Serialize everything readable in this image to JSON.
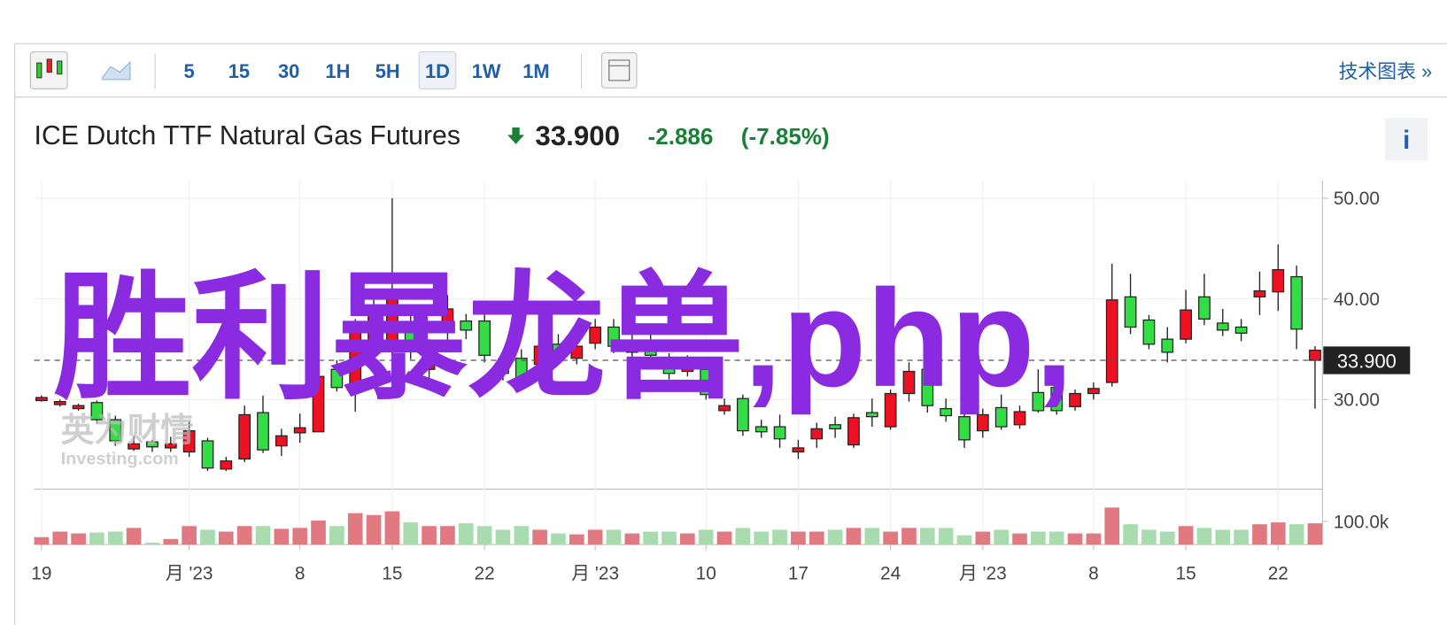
{
  "toolbar": {
    "intervals": [
      "5",
      "15",
      "30",
      "1H",
      "5H",
      "1D",
      "1W",
      "1M"
    ],
    "link": "技术图表 »"
  },
  "header": {
    "title": "ICE Dutch TTF Natural Gas Futures",
    "price": "33.900",
    "change": "-2.886",
    "change_pct": "(-7.85%)",
    "info": "i"
  },
  "watermark": {
    "text": "胜利暴龙兽,php,"
  },
  "logo": {
    "cn": "英为财情",
    "en": "Investing.com"
  },
  "chart_data": {
    "type": "candlestick",
    "categories": [
      "19",
      null,
      null,
      null,
      null,
      null,
      null,
      null,
      "月 '23",
      null,
      null,
      null,
      null,
      null,
      "8",
      null,
      null,
      null,
      null,
      "15",
      null,
      null,
      null,
      null,
      "22",
      null,
      null,
      null,
      null,
      null,
      "月 '23",
      null,
      null,
      null,
      null,
      null,
      "10",
      null,
      null,
      null,
      null,
      "17",
      null,
      null,
      null,
      null,
      "24",
      null,
      null,
      null,
      null,
      "月 '23",
      null,
      null,
      null,
      null,
      null,
      "8",
      null,
      null,
      null,
      null,
      "15",
      null,
      null,
      null,
      null,
      "22",
      null,
      null
    ],
    "open": [
      30.2,
      29.8,
      29.4,
      28.0,
      25.9,
      25.6,
      25.3,
      25.6,
      26.9,
      23.2,
      23.9,
      28.5,
      25.0,
      26.4,
      27.2,
      32.3,
      31.2,
      37.2,
      38.5,
      40.4,
      35.3,
      35.3,
      39.0,
      36.9,
      34.4,
      32.6,
      32.1,
      35.3,
      34.4,
      35.3,
      37.2,
      35.3,
      35.8,
      34.4,
      32.6,
      33.7,
      30.5,
      29.4,
      26.9,
      26.8,
      26.1,
      25.2,
      27.1,
      27.1,
      28.2,
      28.3,
      30.6,
      32.8,
      29.4,
      28.4,
      26.0,
      28.5,
      27.3,
      28.8,
      28.9,
      28.9,
      30.6,
      31.1,
      39.9,
      37.2,
      35.5,
      34.7,
      38.9,
      38.0,
      36.9,
      36.6,
      40.8,
      42.9,
      37.0,
      34.9
    ],
    "high": [
      30.4,
      30.0,
      29.6,
      29.9,
      28.4,
      26.4,
      26.0,
      26.3,
      27.8,
      26.2,
      24.3,
      29.4,
      30.4,
      27.1,
      28.6,
      33.7,
      33.9,
      38.0,
      40.0,
      50.0,
      38.5,
      36.0,
      40.4,
      38.5,
      38.5,
      34.6,
      35.0,
      36.0,
      36.5,
      36.0,
      38.0,
      38.0,
      36.5,
      36.5,
      34.6,
      34.4,
      33.5,
      30.1,
      30.5,
      28.0,
      28.5,
      26.0,
      27.7,
      28.3,
      28.6,
      30.1,
      31.0,
      33.7,
      33.5,
      30.1,
      28.7,
      29.1,
      30.5,
      29.4,
      33.0,
      32.0,
      31.0,
      31.7,
      43.5,
      42.5,
      38.4,
      37.2,
      40.9,
      42.5,
      39.0,
      38.0,
      42.7,
      45.4,
      43.3,
      35.3
    ],
    "low": [
      29.8,
      29.3,
      28.9,
      27.6,
      25.4,
      24.9,
      24.8,
      24.8,
      24.3,
      22.9,
      22.9,
      23.8,
      24.7,
      24.4,
      25.7,
      26.8,
      30.8,
      28.8,
      33.7,
      34.0,
      34.0,
      31.5,
      35.3,
      36.0,
      33.7,
      31.9,
      31.5,
      32.6,
      33.5,
      33.5,
      35.0,
      34.6,
      34.0,
      33.7,
      32.0,
      32.3,
      30.0,
      28.5,
      26.4,
      26.2,
      25.2,
      24.1,
      25.2,
      26.2,
      25.2,
      27.3,
      27.0,
      29.8,
      28.7,
      27.8,
      25.2,
      26.2,
      27.0,
      27.1,
      28.7,
      28.5,
      28.9,
      30.0,
      31.3,
      36.5,
      35.0,
      33.7,
      35.6,
      37.4,
      36.3,
      35.8,
      38.4,
      38.8,
      35.0,
      29.1
    ],
    "close": [
      29.9,
      29.5,
      29.1,
      29.7,
      28.0,
      25.1,
      25.8,
      25.2,
      24.8,
      25.9,
      23.1,
      24.1,
      28.7,
      25.4,
      26.7,
      26.8,
      33.0,
      30.7,
      34.9,
      35.3,
      37.6,
      33.0,
      36.7,
      37.8,
      37.8,
      33.8,
      34.1,
      33.5,
      35.5,
      34.1,
      35.6,
      37.2,
      34.7,
      35.8,
      33.9,
      32.8,
      33.0,
      28.9,
      30.1,
      27.3,
      27.3,
      24.8,
      26.1,
      27.5,
      25.5,
      28.7,
      27.3,
      30.6,
      33.0,
      29.1,
      28.3,
      26.9,
      29.2,
      27.5,
      30.7,
      31.2,
      29.3,
      30.6,
      31.7,
      40.2,
      37.9,
      36.0,
      36.0,
      40.2,
      37.6,
      37.2,
      40.2,
      40.7,
      42.2,
      33.9
    ],
    "volume": [
      32000,
      56000,
      48000,
      52000,
      56000,
      72000,
      8000,
      24000,
      80000,
      64000,
      56000,
      80000,
      80000,
      68000,
      72000,
      104000,
      80000,
      136000,
      128000,
      144000,
      96000,
      80000,
      80000,
      92000,
      80000,
      64000,
      80000,
      64000,
      48000,
      44000,
      64000,
      64000,
      48000,
      56000,
      56000,
      48000,
      64000,
      56000,
      72000,
      56000,
      64000,
      56000,
      56000,
      64000,
      72000,
      72000,
      56000,
      72000,
      72000,
      72000,
      40000,
      56000,
      64000,
      48000,
      56000,
      56000,
      48000,
      48000,
      160000,
      88000,
      64000,
      56000,
      80000,
      72000,
      64000,
      64000,
      88000,
      96000,
      88000,
      92000
    ],
    "up_color": "#33dd44",
    "down_color": "#ee1122",
    "up_volume_color": "#a8dcae",
    "down_volume_color": "#e07a80",
    "ylim": [
      21.1,
      51.8
    ],
    "yticks": [
      {
        "value": 30,
        "label": "30.00"
      },
      {
        "value": 40,
        "label": "40.00"
      },
      {
        "value": 50,
        "label": "50.00"
      }
    ],
    "volume_lim": [
      0,
      240000
    ],
    "volume_ticks": [
      {
        "value": 100000,
        "label": "100.0k"
      }
    ],
    "grid": true
  }
}
